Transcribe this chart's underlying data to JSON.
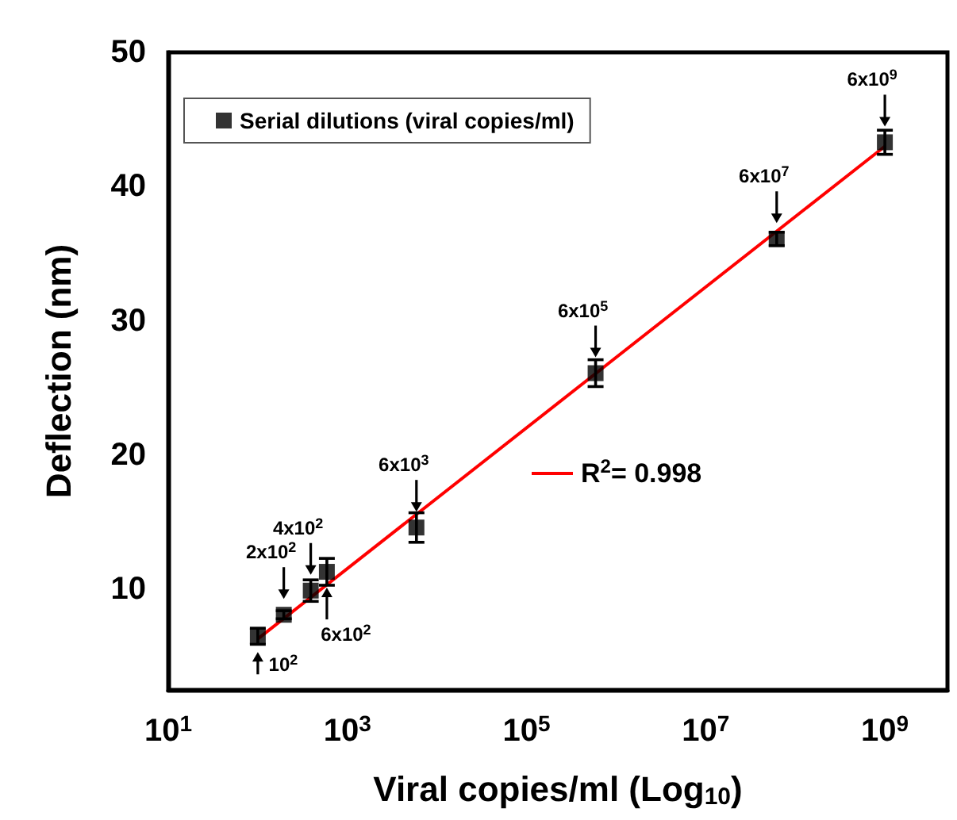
{
  "chart_data": {
    "type": "scatter",
    "xlabel": "Viral copies/ml (Log$_{10}$)",
    "ylabel": "Deflection (nm)",
    "log": "x",
    "xlim": [
      10,
      5000000000
    ],
    "xticks": [
      {
        "value": 10,
        "label": "10$^{1}$"
      },
      {
        "value": 1000,
        "label": "10$^{3}$"
      },
      {
        "value": 100000,
        "label": "10$^{5}$"
      },
      {
        "value": 10000000,
        "label": "10$^{7}$"
      },
      {
        "value": 1000000000,
        "label": "10$^{9}$"
      }
    ],
    "ylim": [
      2.5,
      50
    ],
    "yticks": [
      10,
      20,
      30,
      40,
      50
    ],
    "grid": false,
    "legend": "top left",
    "marker": "square",
    "series": [
      {
        "name": "Serial dilutions (viral copies/ml)",
        "color": "#000000",
        "x": [
          100,
          195,
          390,
          590,
          5900,
          590000,
          62000000,
          1000000000
        ],
        "values": [
          6.5,
          8.1,
          9.9,
          11.3,
          14.6,
          26.1,
          36.1,
          43.3
        ],
        "errors": [
          0.6,
          0.3,
          0.8,
          1.0,
          1.1,
          1.0,
          0.5,
          0.9
        ]
      },
      {
        "name": "R$^{2}$= 0.998",
        "type": "line",
        "color": "#ff0000",
        "marker": "none",
        "line_style": "solid",
        "x": [
          100,
          1000000000
        ],
        "values": [
          6.3,
          43.0
        ]
      }
    ],
    "annotations": [
      {
        "text": "10$^{2}$",
        "x": 100,
        "y": 6.5
      },
      {
        "text": "2x10$^{2}$",
        "x": 195,
        "y": 8.1
      },
      {
        "text": "4x10$^{2}$",
        "x": 390,
        "y": 9.9
      },
      {
        "text": "6x10$^{2}$",
        "x": 590,
        "y": 11.3
      },
      {
        "text": "6x10$^{3}$",
        "x": 5900,
        "y": 14.6
      },
      {
        "text": "6x10$^{5}$",
        "x": 590000,
        "y": 26.1
      },
      {
        "text": "6x10$^{7}$",
        "x": 62000000,
        "y": 36.1
      },
      {
        "text": "6x10$^{9}$",
        "x": 1000000000,
        "y": 43.3
      }
    ]
  }
}
